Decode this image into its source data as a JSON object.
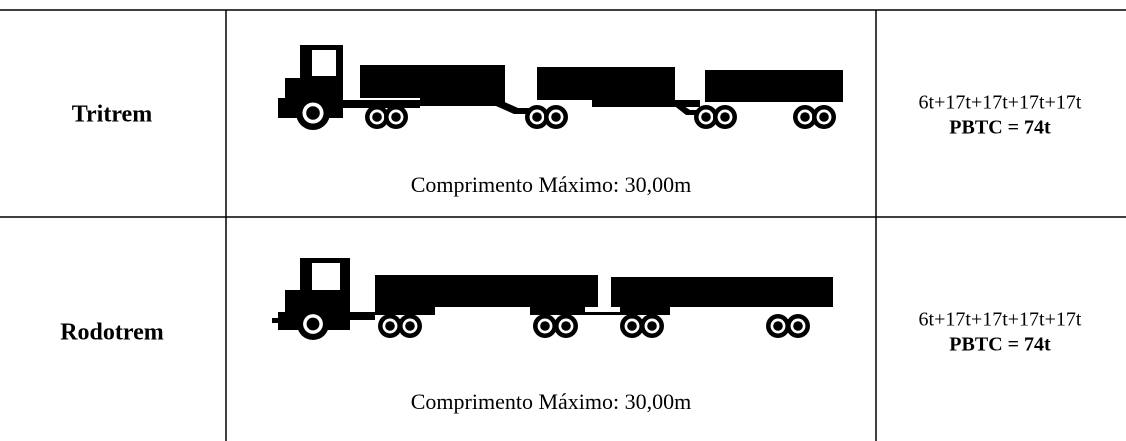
{
  "table": {
    "rows": [
      {
        "name": "Tritrem",
        "caption": "Comprimento Máximo: 30,00m",
        "axles": "6t+17t+17t+17t+17t",
        "pbtc": "PBTC = 74t"
      },
      {
        "name": "Rodotrem",
        "caption": "Comprimento Máximo: 30,00m",
        "axles": "6t+17t+17t+17t+17t",
        "pbtc": "PBTC = 74t"
      }
    ]
  }
}
